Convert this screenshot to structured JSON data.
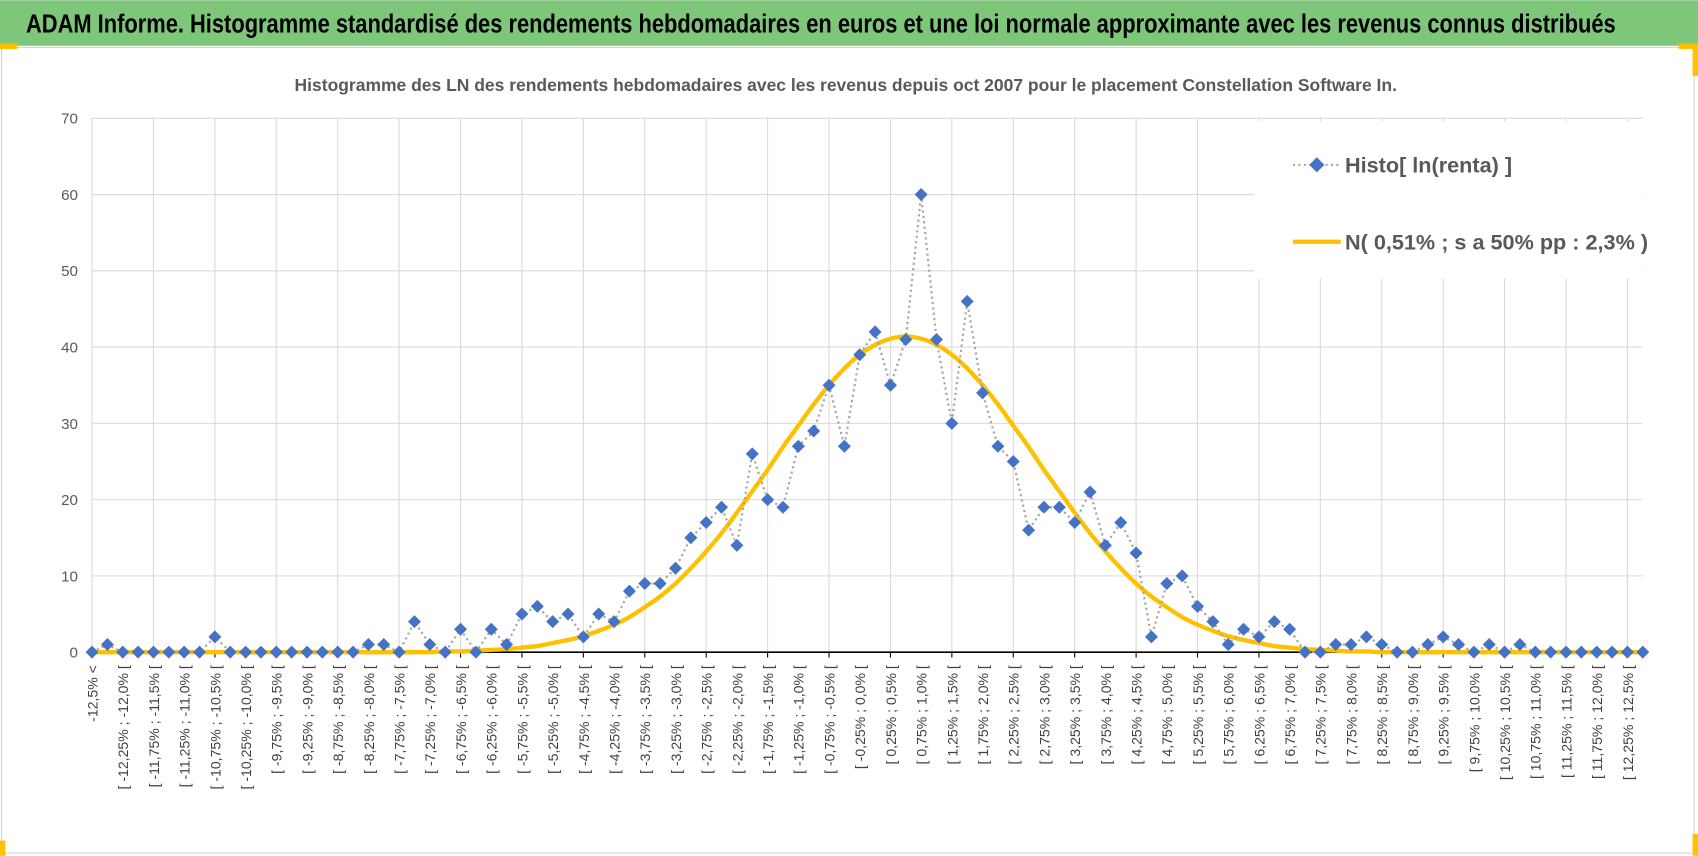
{
  "chart_data": {
    "type": "line",
    "header": "ADAM Informe. Histogramme standardisé des rendements hebdomadaires en euros et une loi normale approximante avec les revenus connus distribués",
    "title": "Histogramme des LN des rendements hebdomadaires avec les revenus depuis oct 2007 pour le placement Constellation Software In.",
    "categories": [
      "-12,5% <",
      null,
      "[ -12,25% ; -12,0% [",
      null,
      "[ -11,75% ; -11,5% [",
      null,
      "[ -11,25% ; -11,0% [",
      null,
      "[ -10,75% ; -10,5% [",
      null,
      "[ -10,25% ; -10,0% [",
      null,
      "[ -9,75% ; -9,5% [",
      null,
      "[ -9,25% ; -9,0% [",
      null,
      "[ -8,75% ; -8,5% [",
      null,
      "[ -8,25% ; -8,0% [",
      null,
      "[ -7,75% ; -7,5% [",
      null,
      "[ -7,25% ; -7,0% [",
      null,
      "[ -6,75% ; -6,5% [",
      null,
      "[ -6,25% ; -6,0% [",
      null,
      "[ -5,75% ; -5,5% [",
      null,
      "[ -5,25% ; -5,0% [",
      null,
      "[ -4,75% ; -4,5% [",
      null,
      "[ -4,25% ; -4,0% [",
      null,
      "[ -3,75% ; -3,5% [",
      null,
      "[ -3,25% ; -3,0% [",
      null,
      "[ -2,75% ; -2,5% [",
      null,
      "[ -2,25% ; -2,0% [",
      null,
      "[ -1,75% ; -1,5% [",
      null,
      "[ -1,25% ; -1,0% [",
      null,
      "[ -0,75% ; -0,5% [",
      null,
      "[ -0,25% ; 0,0% [",
      null,
      "[ 0,25% ; 0,5% [",
      null,
      "[ 0,75% ; 1,0% [",
      null,
      "[ 1,25% ; 1,5% [",
      null,
      "[ 1,75% ; 2,0% [",
      null,
      "[ 2,25% ; 2,5% [",
      null,
      "[ 2,75% ; 3,0% [",
      null,
      "[ 3,25% ; 3,5% [",
      null,
      "[ 3,75% ; 4,0% [",
      null,
      "[ 4,25% ; 4,5% [",
      null,
      "[ 4,75% ; 5,0% [",
      null,
      "[ 5,25% ; 5,5% [",
      null,
      "[ 5,75% ; 6,0% [",
      null,
      "[ 6,25% ; 6,5% [",
      null,
      "[ 6,75% ; 7,0% [",
      null,
      "[ 7,25% ; 7,5% [",
      null,
      "[ 7,75% ; 8,0% [",
      null,
      "[ 8,25% ; 8,5% [",
      null,
      "[ 8,75% ; 9,0% [",
      null,
      "[ 9,25% ; 9,5% [",
      null,
      "[ 9,75% ; 10,0% [",
      null,
      "[ 10,25% ; 10,5% [",
      null,
      "[ 10,75% ; 11,0% [",
      null,
      "[ 11,25% ; 11,5% [",
      null,
      "[ 11,75% ; 12,0% [",
      null,
      "[ 12,25% ; 12,5% [",
      null
    ],
    "series": [
      {
        "name": "Histo[ ln(renta) ]",
        "color": "#4472c4",
        "line_color": "#a6a6a6",
        "line_style": "dotted",
        "marker": "diamond",
        "values": [
          0,
          1,
          0,
          0,
          0,
          0,
          0,
          0,
          2,
          0,
          0,
          0,
          0,
          0,
          0,
          0,
          0,
          0,
          1,
          1,
          0,
          4,
          1,
          0,
          3,
          0,
          3,
          1,
          5,
          6,
          4,
          5,
          2,
          5,
          4,
          8,
          9,
          9,
          11,
          15,
          17,
          19,
          14,
          26,
          20,
          19,
          27,
          29,
          35,
          27,
          39,
          42,
          35,
          41,
          60,
          41,
          30,
          46,
          34,
          27,
          25,
          16,
          19,
          19,
          17,
          21,
          14,
          17,
          13,
          2,
          9,
          10,
          6,
          4,
          1,
          3,
          2,
          4,
          3,
          0,
          0,
          1,
          1,
          2,
          1,
          0,
          0,
          1,
          2,
          1,
          0,
          1,
          0,
          1,
          0,
          0,
          0,
          0,
          0,
          0,
          0,
          0
        ]
      },
      {
        "name": "N( 0,51% ; s a 50% pp : 2,3% )",
        "color": "#ffc000",
        "line_style": "solid",
        "marker": "none",
        "values": [
          0,
          0,
          0,
          0,
          0,
          0,
          0,
          0,
          0,
          0,
          0,
          0,
          0,
          0,
          0,
          0,
          0,
          0,
          0,
          0,
          0,
          0,
          0,
          0.1,
          0.1,
          0.2,
          0.3,
          0.4,
          0.6,
          0.8,
          1.2,
          1.6,
          2.1,
          2.8,
          3.6,
          4.6,
          5.9,
          7.3,
          9.0,
          11.0,
          13.2,
          15.6,
          18.3,
          21.1,
          23.9,
          26.9,
          29.7,
          32.5,
          35.0,
          37.2,
          39.0,
          40.3,
          41.1,
          41.4,
          41.1,
          40.3,
          39.0,
          37.2,
          35.0,
          32.5,
          29.7,
          26.9,
          23.9,
          21.1,
          18.3,
          15.6,
          13.2,
          11.0,
          9.0,
          7.3,
          5.9,
          4.6,
          3.6,
          2.8,
          2.1,
          1.6,
          1.2,
          0.8,
          0.6,
          0.4,
          0.3,
          0.2,
          0.1,
          0.1,
          0,
          0,
          0,
          0,
          0,
          0,
          0,
          0,
          0,
          0,
          0,
          0,
          0,
          0,
          0,
          0,
          0,
          0
        ]
      }
    ],
    "ylim": [
      0,
      70
    ],
    "yticks": [
      0,
      10,
      20,
      30,
      40,
      50,
      60,
      70
    ],
    "grid": true,
    "legend": "upper right"
  }
}
